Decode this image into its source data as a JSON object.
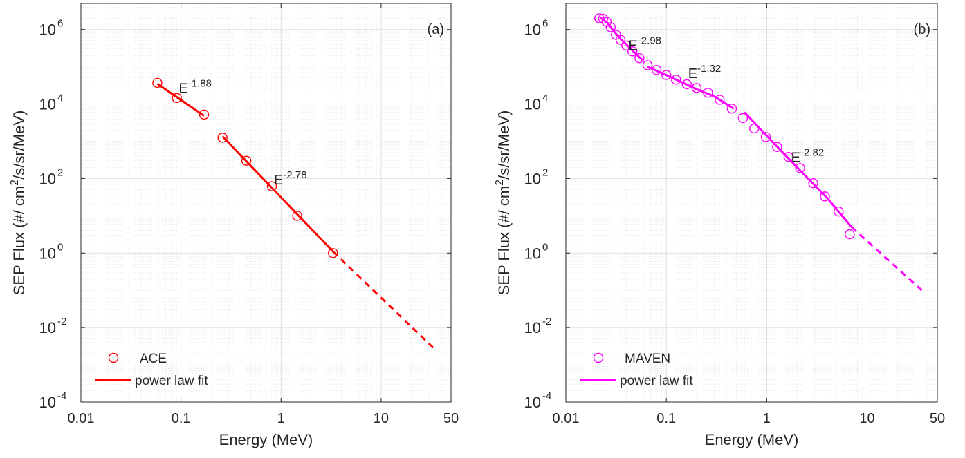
{
  "chart_data": [
    {
      "type": "scatter",
      "panel_label": "(a)",
      "xlabel": "Energy (MeV)",
      "ylabel_prefix": "SEP Flux (#/ cm",
      "ylabel_sup": "2",
      "ylabel_suffix": "/s/sr/MeV)",
      "xscale": "log",
      "yscale": "log",
      "xlim": [
        0.01,
        50
      ],
      "ylim": [
        0.0001,
        5000000
      ],
      "xticks": [
        0.01,
        0.1,
        1,
        10,
        50
      ],
      "xtick_labels": [
        "0.01",
        "0.1",
        "1",
        "10",
        "50"
      ],
      "yticks": [
        0.0001,
        0.01,
        1,
        100,
        10000,
        1000000
      ],
      "ytick_mantissa": "10",
      "ytick_exponents": [
        "-4",
        "-2",
        "0",
        "2",
        "4",
        "6"
      ],
      "grid": true,
      "legend_position": "bottom-left",
      "color": "#ff0000",
      "series": [
        {
          "name": "ACE",
          "marker": "circle",
          "x": [
            0.058,
            0.091,
            0.17,
            0.26,
            0.45,
            0.81,
            1.45,
            3.3
          ],
          "y": [
            37000,
            14500,
            5200,
            1250,
            300,
            62,
            10,
            1.0
          ]
        },
        {
          "name": "power law fit",
          "line": "solid",
          "segments": [
            {
              "x": [
                0.058,
                0.17
              ],
              "y": [
                35000,
                4800
              ]
            },
            {
              "x": [
                0.26,
                3.3
              ],
              "y": [
                1350,
                1.1
              ]
            }
          ]
        },
        {
          "line": "dashed",
          "segments": [
            {
              "x": [
                3.3,
                35
              ],
              "y": [
                1.1,
                0.0025
              ]
            }
          ]
        }
      ],
      "annotations": [
        {
          "base": "E",
          "exponent": "-1.88",
          "x": 0.095,
          "y": 20000
        },
        {
          "base": "E",
          "exponent": "-2.78",
          "x": 0.85,
          "y": 70
        }
      ]
    },
    {
      "type": "scatter",
      "panel_label": "(b)",
      "xlabel": "Energy (MeV)",
      "ylabel_prefix": "SEP Flux (#/ cm",
      "ylabel_sup": "2",
      "ylabel_suffix": "/s/sr/MeV)",
      "xscale": "log",
      "yscale": "log",
      "xlim": [
        0.01,
        50
      ],
      "ylim": [
        0.0001,
        5000000
      ],
      "xticks": [
        0.01,
        0.1,
        1,
        10,
        50
      ],
      "xtick_labels": [
        "0.01",
        "0.1",
        "1",
        "10",
        "50"
      ],
      "yticks": [
        0.0001,
        0.01,
        1,
        100,
        10000,
        1000000
      ],
      "ytick_mantissa": "10",
      "ytick_exponents": [
        "-4",
        "-2",
        "0",
        "2",
        "4",
        "6"
      ],
      "grid": true,
      "legend_position": "bottom-left",
      "color": "#ff00ff",
      "series": [
        {
          "name": "MAVEN",
          "marker": "circle",
          "x": [
            0.0215,
            0.0235,
            0.0255,
            0.028,
            0.0315,
            0.035,
            0.04,
            0.046,
            0.054,
            0.065,
            0.08,
            0.1,
            0.125,
            0.16,
            0.2,
            0.26,
            0.34,
            0.45,
            0.58,
            0.75,
            0.98,
            1.27,
            1.65,
            2.15,
            2.9,
            3.8,
            5.2,
            6.7
          ],
          "y": [
            2000000,
            1950000,
            1600000,
            1150000,
            720000,
            530000,
            370000,
            260000,
            170000,
            110000,
            82000,
            60000,
            45000,
            34000,
            27000,
            20000,
            13000,
            7500,
            4200,
            2200,
            1300,
            700,
            380,
            190,
            75,
            33,
            13,
            3.2
          ]
        },
        {
          "name": "power law fit",
          "line": "solid",
          "segments": [
            {
              "x": [
                0.022,
                0.026,
                0.03,
                0.035,
                0.042,
                0.05,
                0.058
              ],
              "y": [
                2100000,
                1500000,
                900000,
                560000,
                350000,
                220000,
                150000
              ]
            },
            {
              "x": [
                0.065,
                0.1,
                0.2,
                0.3,
                0.47
              ],
              "y": [
                100000,
                60000,
                25000,
                16000,
                7500
              ]
            },
            {
              "x": [
                0.6,
                1.0,
                2.0,
                4.0,
                7.0
              ],
              "y": [
                6000,
                1400,
                200,
                30,
                5
              ]
            }
          ]
        },
        {
          "line": "dashed",
          "segments": [
            {
              "x": [
                7.0,
                35
              ],
              "y": [
                5,
                0.1
              ]
            }
          ]
        }
      ],
      "annotations": [
        {
          "base": "E",
          "exponent": "-2.98",
          "x": 0.042,
          "y": 280000
        },
        {
          "base": "E",
          "exponent": "-1.32",
          "x": 0.165,
          "y": 50000
        },
        {
          "base": "E",
          "exponent": "-2.82",
          "x": 1.75,
          "y": 280
        }
      ]
    }
  ]
}
